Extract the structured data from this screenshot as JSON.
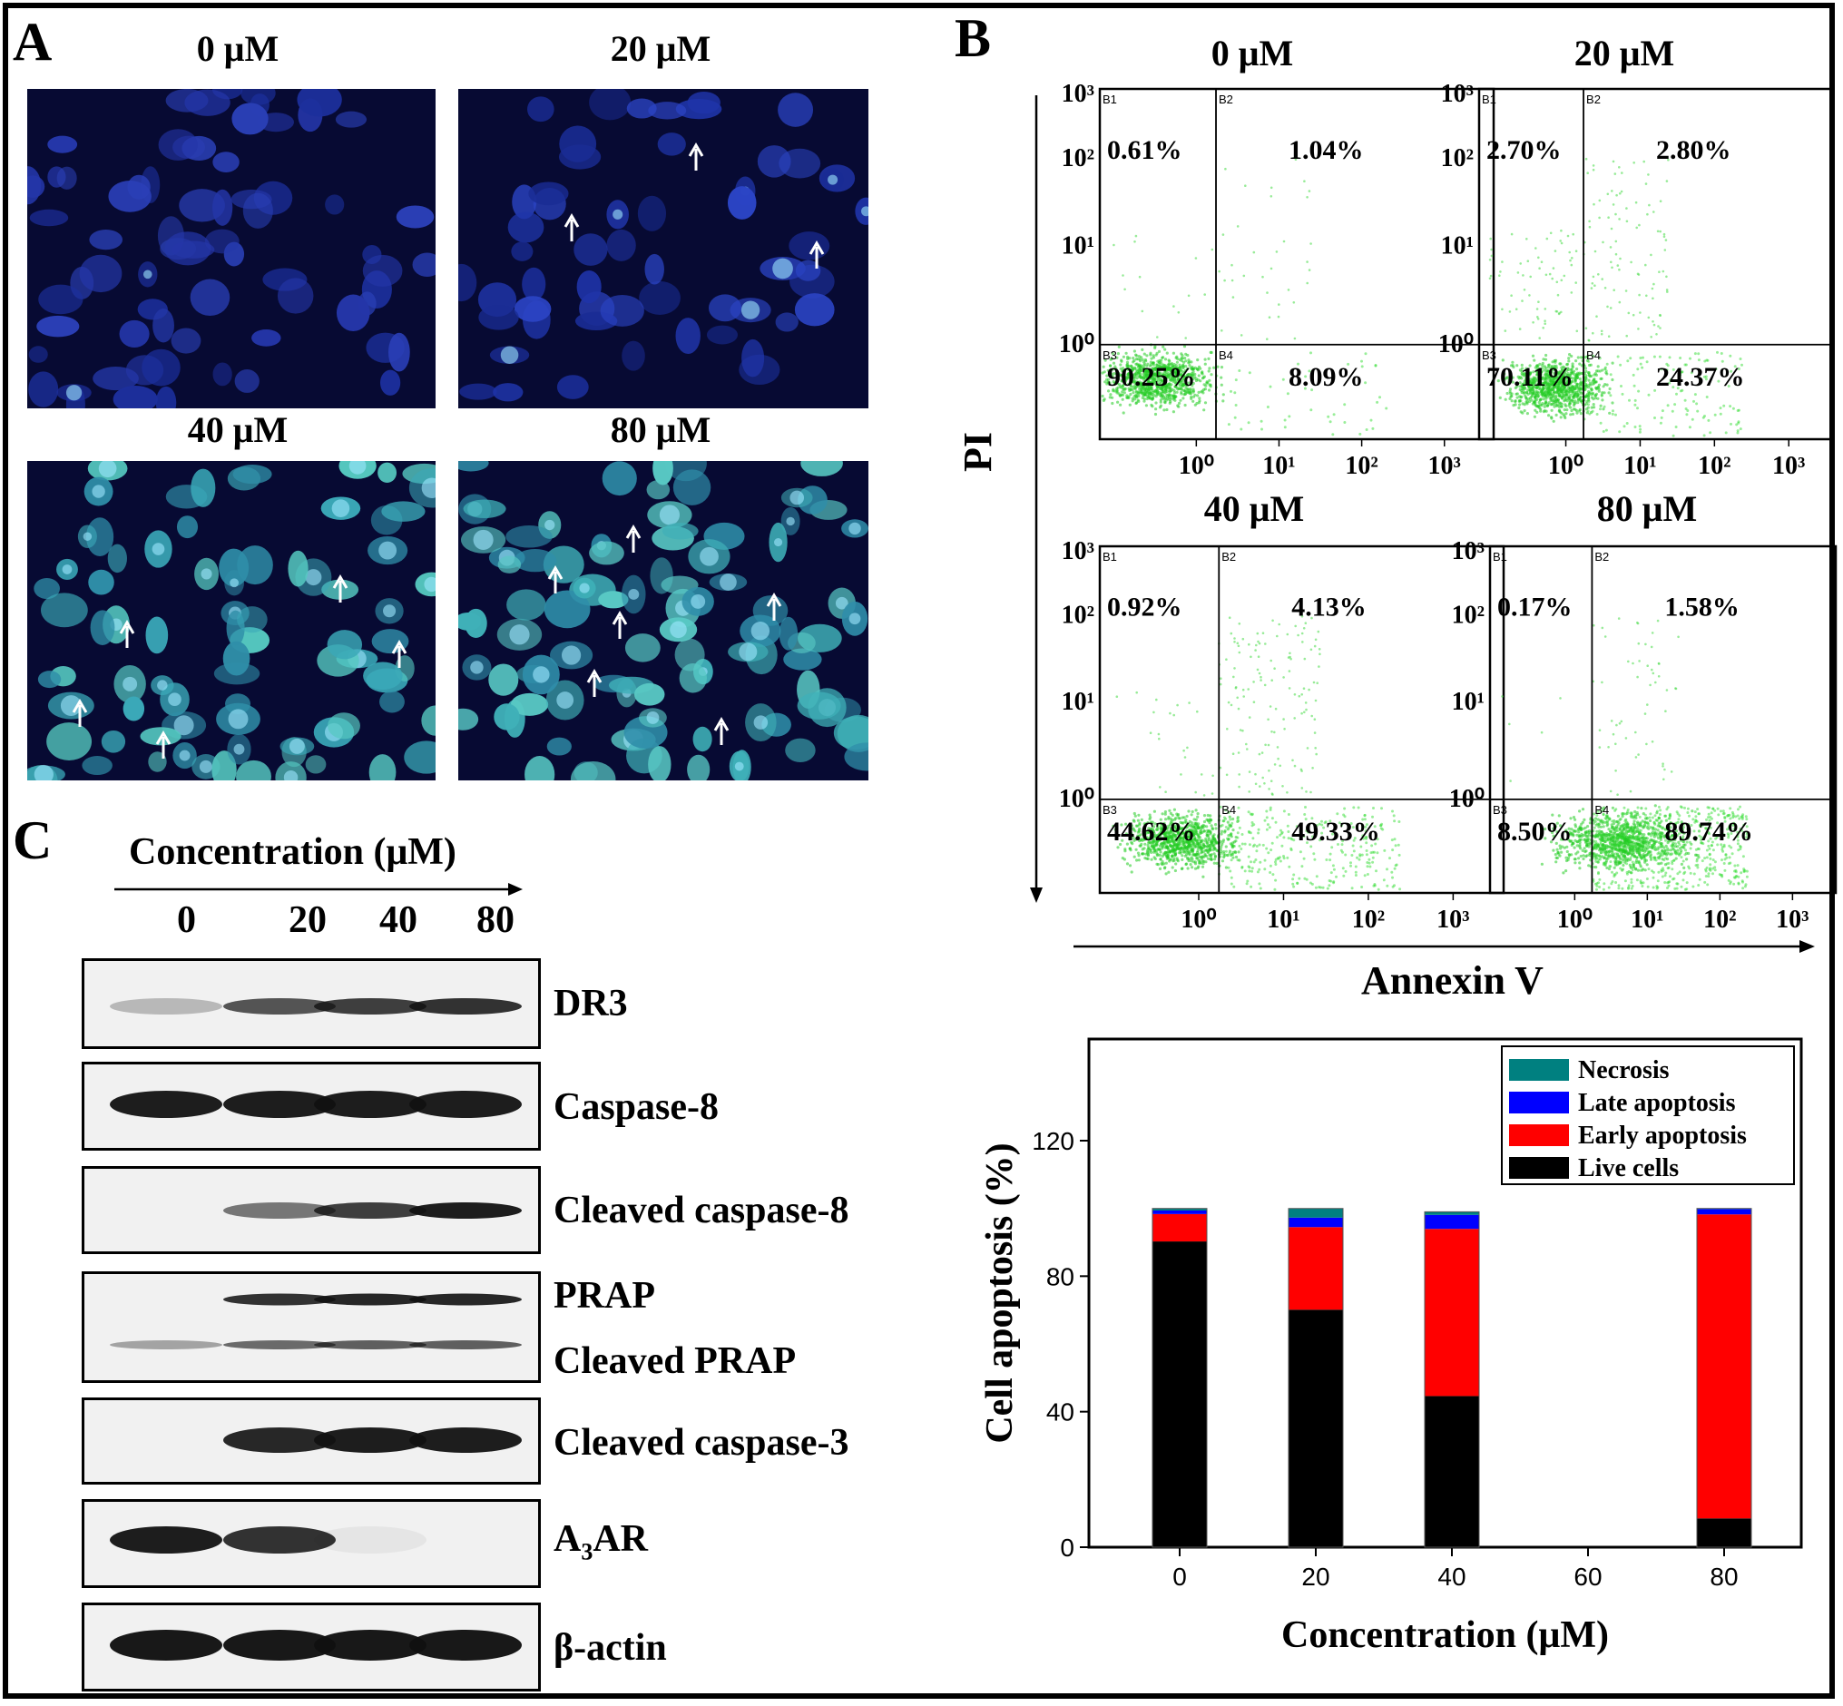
{
  "panel_labels": {
    "a": "A",
    "b": "B",
    "c": "C"
  },
  "panel_a": {
    "images": [
      {
        "title": "0 μM"
      },
      {
        "title": "20 μM"
      },
      {
        "title": "40 μM"
      },
      {
        "title": "80 μM"
      }
    ]
  },
  "panel_b": {
    "y_axis_label": "PI",
    "x_axis_label": "Annexin V",
    "plots": [
      {
        "title": "0 μM",
        "q1": "0.61%",
        "q2": "1.04%",
        "q3": "90.25%",
        "q4": "8.09%"
      },
      {
        "title": "20 μM",
        "q1": "2.70%",
        "q2": "2.80%",
        "q3": "70.11%",
        "q4": "24.37%"
      },
      {
        "title": "40 μM",
        "q1": "0.92%",
        "q2": "4.13%",
        "q3": "44.62%",
        "q4": "49.33%"
      },
      {
        "title": "80 μM",
        "q1": "0.17%",
        "q2": "1.58%",
        "q3": "8.50%",
        "q4": "89.74%"
      }
    ],
    "quadrant_ids": [
      "B1",
      "B2",
      "B3",
      "B4"
    ],
    "tick_labels": [
      "10⁰",
      "10¹",
      "10²",
      "10³"
    ]
  },
  "panel_c": {
    "header": "Concentration (μM)",
    "lanes": [
      "0",
      "20",
      "40",
      "80"
    ],
    "blots": [
      {
        "label": "DR3"
      },
      {
        "label": "Caspase-8"
      },
      {
        "label": "Cleaved caspase-8"
      },
      {
        "label": "PRAP",
        "label2": "Cleaved PRAP"
      },
      {
        "label": "Cleaved caspase-3"
      },
      {
        "label": "A3AR"
      },
      {
        "label": "β-actin"
      }
    ]
  },
  "chart_data": {
    "type": "bar",
    "stacked": true,
    "xlabel": "Concentration (μM)",
    "ylabel": "Cell apoptosis (%)",
    "x_ticks": [
      "0",
      "20",
      "40",
      "60",
      "80"
    ],
    "categories": [
      "0",
      "20",
      "40",
      "80"
    ],
    "ylim": [
      0,
      150
    ],
    "y_ticks": [
      0,
      40,
      80,
      120
    ],
    "legend_position": "top-right",
    "series": [
      {
        "name": "Live cells",
        "color": "#000000",
        "values": [
          90.25,
          70.11,
          44.62,
          8.5
        ]
      },
      {
        "name": "Early apoptosis",
        "color": "#ff0000",
        "values": [
          8.09,
          24.37,
          49.33,
          89.74
        ]
      },
      {
        "name": "Late apoptosis",
        "color": "#0000ff",
        "values": [
          1.04,
          2.8,
          4.13,
          1.58
        ]
      },
      {
        "name": "Necrosis",
        "color": "#008080",
        "values": [
          0.61,
          2.7,
          0.92,
          0.17
        ]
      }
    ]
  }
}
